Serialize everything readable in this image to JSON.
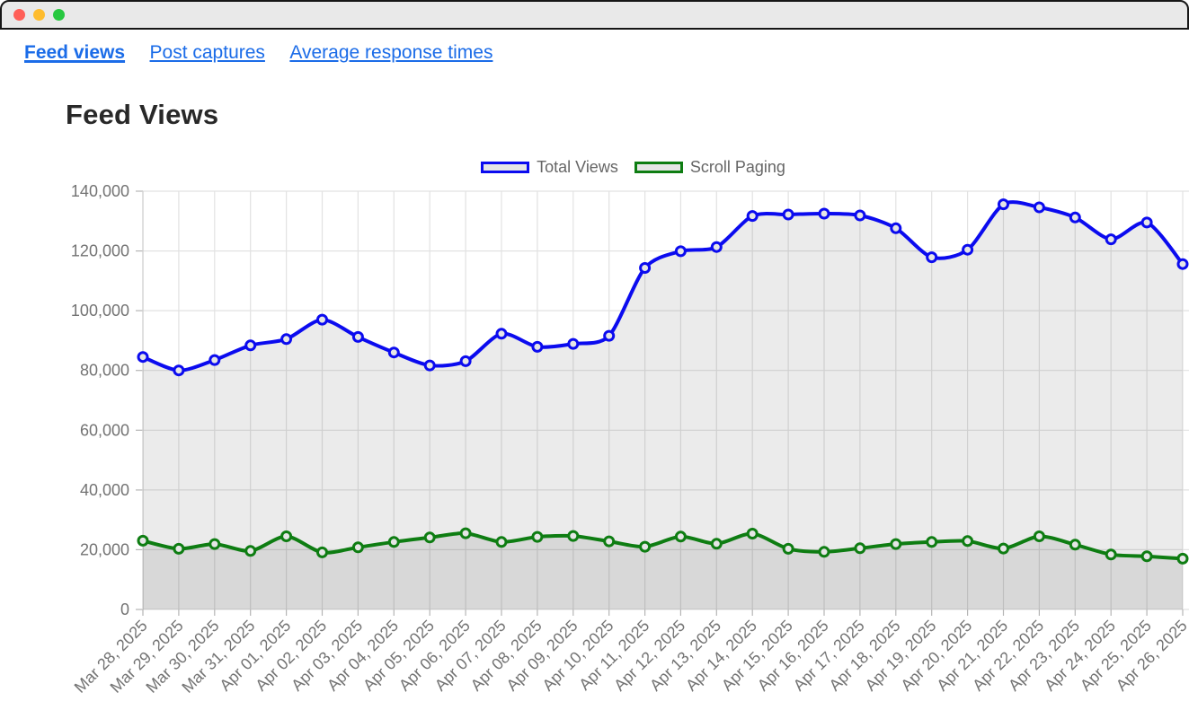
{
  "titlebar": {
    "buttons": [
      {
        "name": "close",
        "color": "#ff5f57"
      },
      {
        "name": "minimize",
        "color": "#febc2e"
      },
      {
        "name": "zoom",
        "color": "#28c840"
      }
    ]
  },
  "nav": {
    "links": [
      {
        "label": "Feed views",
        "active": true
      },
      {
        "label": "Post captures",
        "active": false
      },
      {
        "label": "Average response times",
        "active": false
      }
    ]
  },
  "page": {
    "title": "Feed Views"
  },
  "chart_data": {
    "type": "line",
    "title": "Feed Views",
    "xlabel": "",
    "ylabel": "",
    "x": [
      "Mar 28, 2025",
      "Mar 29, 2025",
      "Mar 30, 2025",
      "Mar 31, 2025",
      "Apr 01, 2025",
      "Apr 02, 2025",
      "Apr 03, 2025",
      "Apr 04, 2025",
      "Apr 05, 2025",
      "Apr 06, 2025",
      "Apr 07, 2025",
      "Apr 08, 2025",
      "Apr 09, 2025",
      "Apr 10, 2025",
      "Apr 11, 2025",
      "Apr 12, 2025",
      "Apr 13, 2025",
      "Apr 14, 2025",
      "Apr 15, 2025",
      "Apr 16, 2025",
      "Apr 17, 2025",
      "Apr 18, 2025",
      "Apr 19, 2025",
      "Apr 20, 2025",
      "Apr 21, 2025",
      "Apr 22, 2025",
      "Apr 23, 2025",
      "Apr 24, 2025",
      "Apr 25, 2025",
      "Apr 26, 2025"
    ],
    "series": [
      {
        "name": "Total Views",
        "color": "#0b0bef",
        "values": [
          84500,
          80000,
          83500,
          88400,
          90500,
          97000,
          91200,
          86000,
          81700,
          83100,
          92300,
          87900,
          88900,
          91600,
          114300,
          119900,
          121300,
          131700,
          132200,
          132500,
          131900,
          127600,
          117900,
          120400,
          135600,
          134600,
          131200,
          123900,
          129500,
          115600
        ]
      },
      {
        "name": "Scroll Paging",
        "color": "#0e7d12",
        "values": [
          23000,
          20300,
          21900,
          19600,
          24500,
          19100,
          20800,
          22600,
          24100,
          25500,
          22600,
          24300,
          24600,
          22800,
          21000,
          24400,
          22000,
          25400,
          20300,
          19300,
          20500,
          21900,
          22600,
          22900,
          20400,
          24500,
          21700,
          18400,
          17800,
          17000
        ]
      }
    ],
    "ylim": [
      0,
      140000
    ],
    "ytick_step": 20000,
    "ytick_labels": [
      "0",
      "20,000",
      "40,000",
      "60,000",
      "80,000",
      "100,000",
      "120,000",
      "140,000"
    ],
    "grid": true,
    "legend_position": "top",
    "x_label_rotation": -45,
    "area_fill": "rgba(0,0,0,0.08)",
    "marker_fill": "#e6e6e6"
  },
  "colors": {
    "link": "#1b6ce8",
    "heading_text": "#282828",
    "axis_text": "#737373",
    "legend_text": "#666666",
    "gridline": "#e2e2e2",
    "tick": "#b5b5b5",
    "titlebar_bg": "#e9e9e9",
    "titlebar_border": "#161616"
  }
}
